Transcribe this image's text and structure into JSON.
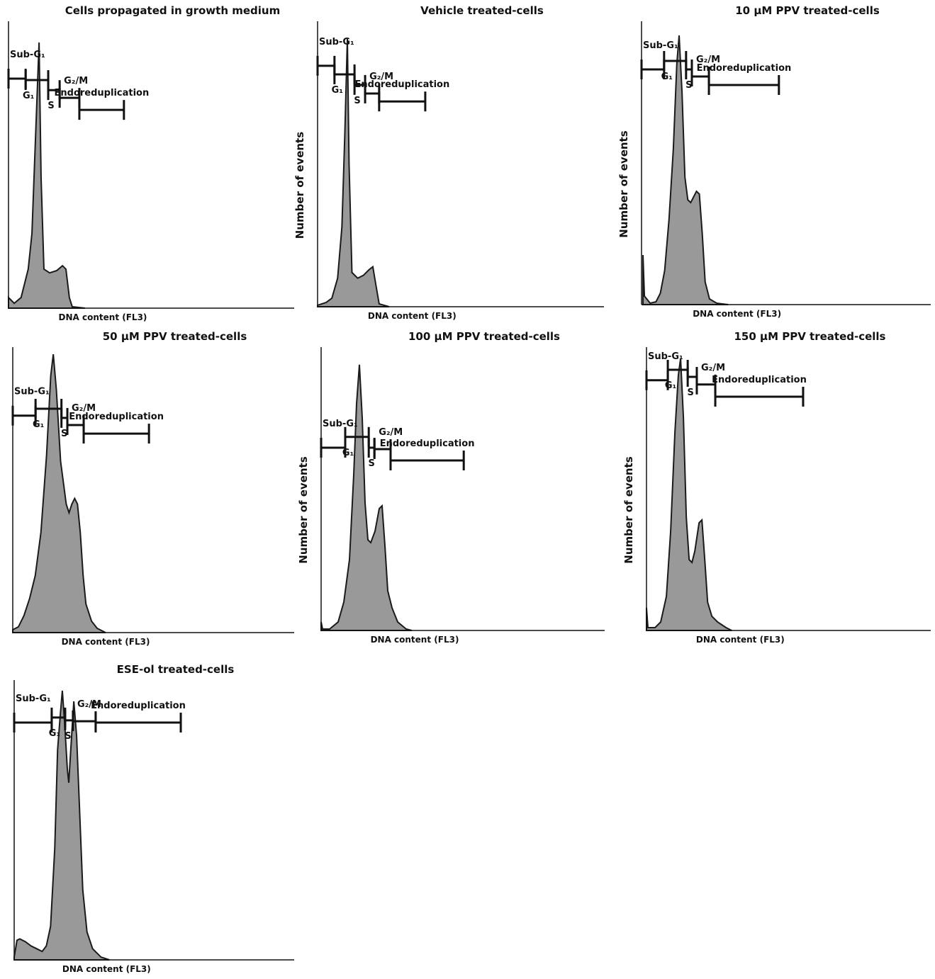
{
  "chart_data": [
    {
      "type": "area",
      "title": "Cells propagated in growth medium",
      "xlabel": "DNA content (FL3)",
      "color": "#999999",
      "line_color": "#1a1a1a",
      "xlim": [
        0,
        100
      ],
      "ylim": [
        0,
        100
      ],
      "x": [
        0,
        2,
        4.4,
        6.9,
        8.2,
        9.4,
        10.7,
        11.4,
        12.4,
        14.4,
        16.9,
        18.9,
        20.1,
        21.3,
        22.3,
        26.8
      ],
      "values": [
        3.7,
        1.7,
        3.7,
        13.6,
        26,
        58,
        92.6,
        45.7,
        13.6,
        12.3,
        13.1,
        14.8,
        13.6,
        3.7,
        0.5,
        0
      ],
      "gates": [
        {
          "label": "Sub-G₁",
          "x": [
            0,
            6
          ],
          "y": 80
        },
        {
          "label": "G₁",
          "x": [
            6,
            13.9
          ],
          "y": 79.5
        },
        {
          "label": "S",
          "x": [
            13.9,
            17.9
          ],
          "y": 76
        },
        {
          "label": "G₂/M",
          "x": [
            17.9,
            24.8
          ],
          "y": 73.3
        },
        {
          "label": "Endoreduplication",
          "x": [
            24.8,
            40.4
          ],
          "y": 69.1
        }
      ]
    },
    {
      "type": "area",
      "title": "Vehicle treated-cells",
      "xlabel": "DNA content (FL3)",
      "ylabel": "Number of events",
      "color": "#999999",
      "line_color": "#1a1a1a",
      "xlim": [
        0,
        100
      ],
      "ylim": [
        0,
        100
      ],
      "x": [
        0,
        3,
        5,
        7,
        8.5,
        9.5,
        10.4,
        11,
        12,
        14,
        16,
        18,
        19.3,
        20.3,
        21.5,
        25
      ],
      "values": [
        0.5,
        1.5,
        3,
        10,
        28,
        60,
        93.8,
        50,
        12,
        10,
        11,
        13,
        14,
        8,
        1,
        0
      ],
      "gates": [
        {
          "label": "Sub-G₁",
          "x": [
            0,
            5.9
          ],
          "y": 84.4
        },
        {
          "label": "G₁",
          "x": [
            5.9,
            12.9
          ],
          "y": 81.4
        },
        {
          "label": "S",
          "x": [
            12.9,
            16.6
          ],
          "y": 77.7
        },
        {
          "label": "G₂/M",
          "x": [
            16.6,
            21.5
          ],
          "y": 74.7
        },
        {
          "label": "Endoreduplication",
          "x": [
            21.5,
            37.6
          ],
          "y": 71.9
        }
      ]
    },
    {
      "type": "area",
      "title": "10 μM PPV treated-cells",
      "xlabel": "DNA content (FL3)",
      "ylabel": "Number of events",
      "color": "#999999",
      "line_color": "#1a1a1a",
      "xlim": [
        0,
        100
      ],
      "ylim": [
        0,
        100
      ],
      "x": [
        0.5,
        1,
        3,
        5,
        6.5,
        8,
        9.5,
        11,
        12.2,
        13,
        14,
        15,
        16,
        17,
        18,
        19,
        20,
        21,
        22,
        23.5,
        26,
        30
      ],
      "values": [
        17.5,
        3,
        0.5,
        1,
        4,
        12,
        30,
        55,
        85,
        95,
        75,
        45,
        37,
        36,
        38,
        40,
        39,
        25,
        8,
        2,
        0.5,
        0
      ],
      "gates": [
        {
          "label": "Sub-G₁",
          "x": [
            0,
            7.8
          ],
          "y": 83
        },
        {
          "label": "G₁",
          "x": [
            7.8,
            15.4
          ],
          "y": 86
        },
        {
          "label": "S",
          "x": [
            15.4,
            17.4
          ],
          "y": 83
        },
        {
          "label": "G₂/M",
          "x": [
            17.4,
            23.3
          ],
          "y": 80.5
        },
        {
          "label": "Endoreduplication",
          "x": [
            23.3,
            47.5
          ],
          "y": 77.5
        }
      ]
    },
    {
      "type": "area",
      "title": "50 μM PPV treated-cells",
      "xlabel": "DNA content (FL3)",
      "color": "#999999",
      "line_color": "#1a1a1a",
      "xlim": [
        0,
        100
      ],
      "ylim": [
        0,
        100
      ],
      "x": [
        0,
        2,
        4,
        6,
        8,
        10,
        12,
        13.5,
        14.4,
        15.5,
        17,
        19,
        20,
        21,
        22,
        23,
        24,
        25,
        26,
        28,
        30,
        33
      ],
      "values": [
        1,
        2,
        6,
        12,
        20,
        35,
        62,
        90,
        97.5,
        85,
        60,
        45,
        42,
        45,
        47,
        45,
        35,
        20,
        10,
        4,
        1.5,
        0
      ],
      "gates": [
        {
          "label": "Sub-G₁",
          "x": [
            0,
            8.1
          ],
          "y": 76
        },
        {
          "label": "G₁",
          "x": [
            8.1,
            17.3
          ],
          "y": 78.4
        },
        {
          "label": "S",
          "x": [
            17.3,
            19.4
          ],
          "y": 75.2
        },
        {
          "label": "G₂/M",
          "x": [
            19.4,
            25.2
          ],
          "y": 72.7
        },
        {
          "label": "Endoreduplication",
          "x": [
            25.2,
            48.4
          ],
          "y": 69.7
        }
      ]
    },
    {
      "type": "area",
      "title": "100 μM PPV treated-cells",
      "xlabel": "DNA content (FL3)",
      "ylabel": "Number of events",
      "color": "#999999",
      "line_color": "#1a1a1a",
      "xlim": [
        0,
        100
      ],
      "ylim": [
        0,
        100
      ],
      "x": [
        0,
        0.5,
        3,
        6,
        8,
        10,
        11.5,
        12.5,
        13.5,
        14.5,
        15.5,
        16.5,
        17.5,
        19,
        20.5,
        21.5,
        22.5,
        23.5,
        25,
        27,
        30,
        32
      ],
      "values": [
        3,
        0.5,
        0.5,
        3,
        10,
        25,
        55,
        80,
        93.8,
        75,
        45,
        32,
        31,
        35,
        43,
        44,
        30,
        14,
        8,
        3,
        0.5,
        0
      ],
      "gates": [
        {
          "label": "Sub-G₁",
          "x": [
            0,
            8.5
          ],
          "y": 64.5
        },
        {
          "label": "G₁",
          "x": [
            8.5,
            16.8
          ],
          "y": 68.3
        },
        {
          "label": "S",
          "x": [
            16.8,
            18.8
          ],
          "y": 64.5
        },
        {
          "label": "G₂/M",
          "x": [
            18.8,
            24.5
          ],
          "y": 64
        },
        {
          "label": "Endoreduplication",
          "x": [
            24.5,
            50.3
          ],
          "y": 60
        }
      ]
    },
    {
      "type": "area",
      "title": "150 μM PPV treated-cells",
      "xlabel": "DNA content (FL3)",
      "ylabel": "Number of events",
      "color": "#999999",
      "line_color": "#1a1a1a",
      "xlim": [
        0,
        100
      ],
      "ylim": [
        0,
        100
      ],
      "x": [
        0,
        0.5,
        3,
        5,
        7,
        8.5,
        10,
        11.2,
        12,
        13,
        14,
        15,
        16,
        17,
        18.5,
        19.5,
        20.5,
        21.5,
        23,
        25,
        28,
        30
      ],
      "values": [
        8,
        1,
        1,
        3,
        12,
        35,
        70,
        90,
        96,
        75,
        40,
        25,
        24,
        28,
        38,
        39,
        25,
        10,
        5,
        3,
        1,
        0
      ],
      "gates": [
        {
          "label": "Sub-G₁",
          "x": [
            0,
            7.5
          ],
          "y": 88.3
        },
        {
          "label": "G₁",
          "x": [
            7.5,
            14.5
          ],
          "y": 92
        },
        {
          "label": "S",
          "x": [
            14.5,
            17.7
          ],
          "y": 89.5
        },
        {
          "label": "G₂/M",
          "x": [
            17.7,
            24.2
          ],
          "y": 86.8
        },
        {
          "label": "Endoreduplication",
          "x": [
            24.2,
            55.1
          ],
          "y": 82.5
        }
      ]
    },
    {
      "type": "area",
      "title": "ESE-ol treated-cells",
      "xlabel": "DNA content (FL3)",
      "color": "#999999",
      "line_color": "#1a1a1a",
      "xlim": [
        0,
        100
      ],
      "ylim": [
        0,
        100
      ],
      "x": [
        0,
        1,
        2,
        4,
        6,
        8,
        10,
        11.5,
        13,
        14.5,
        15.5,
        16.5,
        17.2,
        18,
        19,
        19.5,
        20.2,
        21.3,
        22.3,
        23.5,
        24.5,
        26,
        28,
        31,
        34
      ],
      "values": [
        1,
        7,
        7.5,
        6.5,
        5,
        4,
        3,
        5,
        12,
        40,
        75,
        88,
        96.2,
        85,
        68,
        63.3,
        75,
        92.4,
        80,
        50,
        25,
        10,
        4,
        1,
        0
      ],
      "gates": [
        {
          "label": "Sub-G₁",
          "x": [
            0,
            13.4
          ],
          "y": 84.8
        },
        {
          "label": "G₁",
          "x": [
            13.4,
            18.2
          ],
          "y": 86.6
        },
        {
          "label": "S",
          "x": [
            18.2,
            21
          ],
          "y": 85.6
        },
        {
          "label": "G₂/M",
          "x": [
            21,
            29.1
          ],
          "y": 85.3
        },
        {
          "label": "Endoreduplication",
          "x": [
            29.1,
            59.5
          ],
          "y": 84.8
        }
      ]
    }
  ]
}
